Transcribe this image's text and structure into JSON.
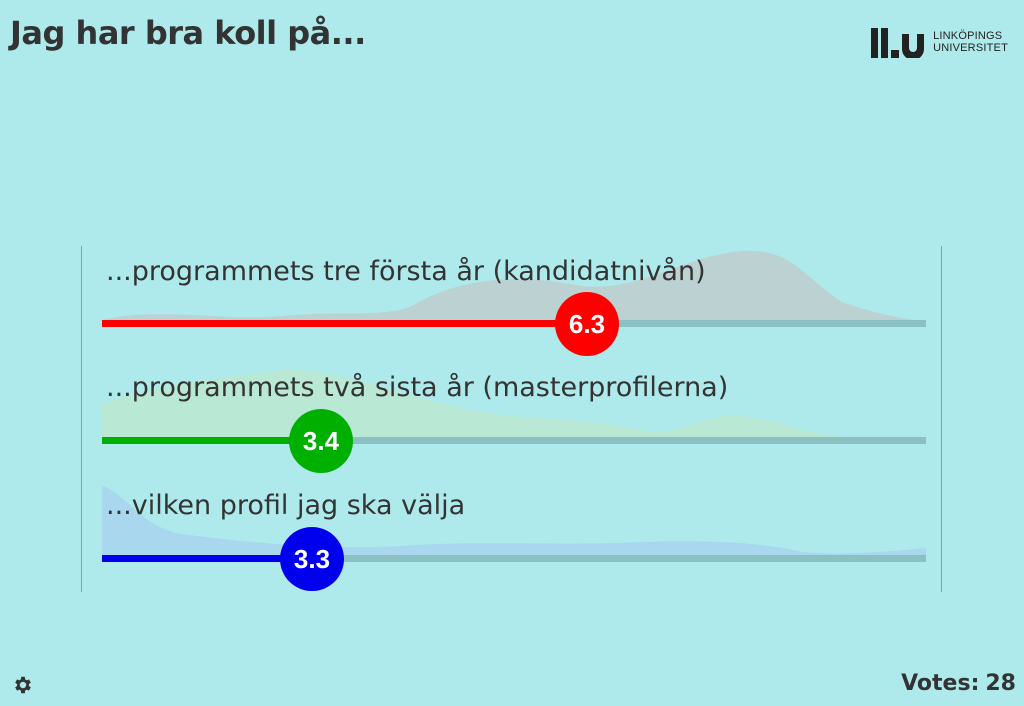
{
  "title": "Jag har bra koll på...",
  "logo": {
    "line1": "LINKÖPINGS",
    "line2": "UNIVERSITET"
  },
  "questions": [
    {
      "label": "...programmets tre första år (kandidatnivån)",
      "value": "6.3",
      "color": "#ff0000"
    },
    {
      "label": "...programmets två sista år (masterprofilerna)",
      "value": "3.4",
      "color": "#00b000"
    },
    {
      "label": "...vilken profil jag ska välja",
      "value": "3.3",
      "color": "#0000ee"
    }
  ],
  "footer": {
    "settings_icon": "gear-icon",
    "votes_label": "Votes:",
    "votes_count": "28"
  }
}
